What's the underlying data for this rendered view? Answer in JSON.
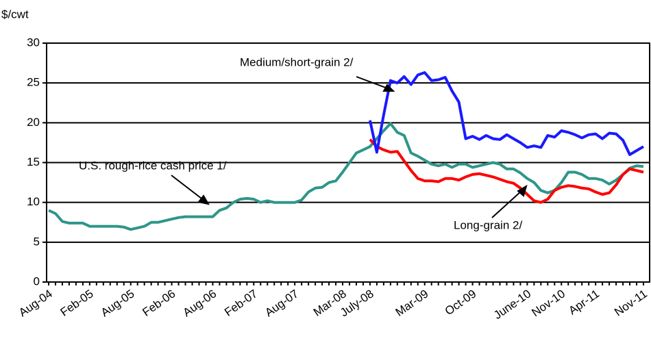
{
  "chart_data": {
    "type": "line",
    "y_label": "$/cwt",
    "annotations": [
      "Medium/short-grain 2/",
      "U.S. rough-rice cash price 1/",
      "Long-grain 2/"
    ],
    "categories": [
      "Aug-04",
      null,
      null,
      null,
      null,
      null,
      "Feb-05",
      null,
      null,
      null,
      null,
      null,
      "Aug-05",
      null,
      null,
      null,
      null,
      null,
      "Feb-06",
      null,
      null,
      null,
      null,
      null,
      "Aug-06",
      null,
      null,
      null,
      null,
      null,
      "Feb-07",
      null,
      null,
      null,
      null,
      null,
      "Aug-07",
      null,
      null,
      null,
      null,
      null,
      null,
      "Mar-08",
      null,
      null,
      null,
      "July-08",
      null,
      null,
      null,
      null,
      null,
      null,
      null,
      "Mar-09",
      null,
      null,
      null,
      null,
      null,
      null,
      "Oct-09",
      null,
      null,
      null,
      null,
      null,
      null,
      null,
      "June-10",
      null,
      null,
      null,
      null,
      "Nov-10",
      null,
      null,
      null,
      null,
      "Apr-11",
      null,
      null,
      null,
      null,
      null,
      null,
      "Nov-11"
    ],
    "series": [
      {
        "name": "U.S. rough-rice cash price 1/",
        "color": "#2e9688",
        "values": [
          9.0,
          8.6,
          7.6,
          7.4,
          7.4,
          7.4,
          7.0,
          7.0,
          7.0,
          7.0,
          7.0,
          6.9,
          6.6,
          6.8,
          7.0,
          7.5,
          7.5,
          7.7,
          7.9,
          8.1,
          8.2,
          8.2,
          8.2,
          8.2,
          8.2,
          9.0,
          9.3,
          10.0,
          10.4,
          10.5,
          10.4,
          10.0,
          10.2,
          10.0,
          10.0,
          10.0,
          10.0,
          10.3,
          11.3,
          11.8,
          11.9,
          12.5,
          12.7,
          13.8,
          15.0,
          16.2,
          16.6,
          17.0,
          18.0,
          19.0,
          19.9,
          18.8,
          18.4,
          16.2,
          15.8,
          15.3,
          14.8,
          14.6,
          14.8,
          14.4,
          14.8,
          14.8,
          14.4,
          14.6,
          14.8,
          15.0,
          14.8,
          14.2,
          14.2,
          13.7,
          13.0,
          12.5,
          11.5,
          11.2,
          11.5,
          12.5,
          13.8,
          13.8,
          13.5,
          13.0,
          13.0,
          12.8,
          12.3,
          12.8,
          13.5,
          14.3,
          14.6,
          14.5
        ]
      },
      {
        "name": "Long-grain 2/",
        "color": "#ff0000",
        "values": [
          null,
          null,
          null,
          null,
          null,
          null,
          null,
          null,
          null,
          null,
          null,
          null,
          null,
          null,
          null,
          null,
          null,
          null,
          null,
          null,
          null,
          null,
          null,
          null,
          null,
          null,
          null,
          null,
          null,
          null,
          null,
          null,
          null,
          null,
          null,
          null,
          null,
          null,
          null,
          null,
          null,
          null,
          null,
          null,
          null,
          null,
          null,
          17.9,
          17.0,
          16.6,
          16.3,
          16.4,
          15.2,
          14.0,
          13.0,
          12.7,
          12.7,
          12.6,
          13.0,
          13.0,
          12.8,
          13.2,
          13.5,
          13.6,
          13.4,
          13.2,
          12.9,
          12.6,
          12.4,
          11.8,
          11.0,
          10.2,
          10.0,
          10.4,
          11.5,
          11.9,
          12.1,
          12.0,
          11.8,
          11.7,
          11.3,
          11.0,
          11.2,
          12.2,
          13.5,
          14.2,
          14.0,
          13.8
        ]
      },
      {
        "name": "Medium/short-grain 2/",
        "color": "#1a1aff",
        "values": [
          null,
          null,
          null,
          null,
          null,
          null,
          null,
          null,
          null,
          null,
          null,
          null,
          null,
          null,
          null,
          null,
          null,
          null,
          null,
          null,
          null,
          null,
          null,
          null,
          null,
          null,
          null,
          null,
          null,
          null,
          null,
          null,
          null,
          null,
          null,
          null,
          null,
          null,
          null,
          null,
          null,
          null,
          null,
          null,
          null,
          null,
          null,
          20.3,
          16.3,
          21.0,
          25.3,
          25.0,
          25.8,
          24.8,
          26.0,
          26.3,
          25.3,
          25.4,
          25.7,
          24.0,
          22.6,
          18.0,
          18.3,
          17.9,
          18.4,
          18.0,
          17.9,
          18.5,
          18.0,
          17.5,
          16.9,
          17.1,
          16.9,
          18.4,
          18.2,
          19.0,
          18.8,
          18.5,
          18.1,
          18.5,
          18.6,
          18.0,
          18.7,
          18.6,
          17.8,
          16.0,
          16.5,
          17.0
        ]
      }
    ],
    "ylim": [
      0,
      30
    ],
    "yticks": [
      0,
      5,
      10,
      15,
      20,
      25,
      30
    ],
    "grid": true
  }
}
